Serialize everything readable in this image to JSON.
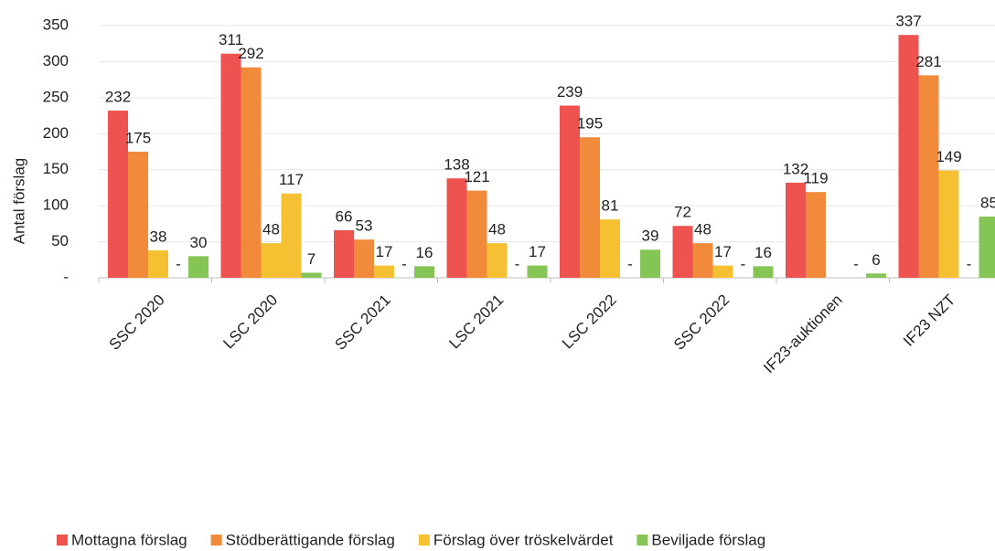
{
  "chart_data": {
    "type": "bar",
    "y_label": "Antal förslag",
    "categories": [
      "SSC 2020",
      "LSC 2020",
      "SSC 2021",
      "LSC 2021",
      "LSC 2022",
      "SSC 2022",
      "IF23-auktionen",
      "IF23 NZT"
    ],
    "series": [
      {
        "name": "Mottagna förslag",
        "color": "#ef5350",
        "values": [
          232,
          311,
          66,
          138,
          239,
          72,
          132,
          337
        ]
      },
      {
        "name": "Stödberättigande förslag",
        "color": "#f28a3c",
        "values": [
          175,
          292,
          53,
          121,
          195,
          48,
          119,
          281
        ]
      },
      {
        "name": "Förslag över tröskelvärdet",
        "color": "#f5c132",
        "values": [
          38,
          48,
          17,
          48,
          81,
          17,
          null,
          149
        ]
      },
      {
        "color": "#f5c132",
        "values": [
          0,
          117,
          0,
          0,
          0,
          0,
          0,
          0
        ],
        "value_labels": [
          "-",
          "117",
          "-",
          "-",
          "-",
          "-",
          "-",
          "-"
        ]
      },
      {
        "name": "Beviljade förslag",
        "color": "#85c556",
        "values": [
          30,
          7,
          16,
          17,
          39,
          16,
          6,
          85
        ]
      }
    ],
    "ylim": [
      0,
      350
    ],
    "yticks": [
      {
        "value": 0,
        "label": "-"
      },
      50,
      100,
      150,
      200,
      250,
      300,
      350
    ],
    "grid": true
  }
}
